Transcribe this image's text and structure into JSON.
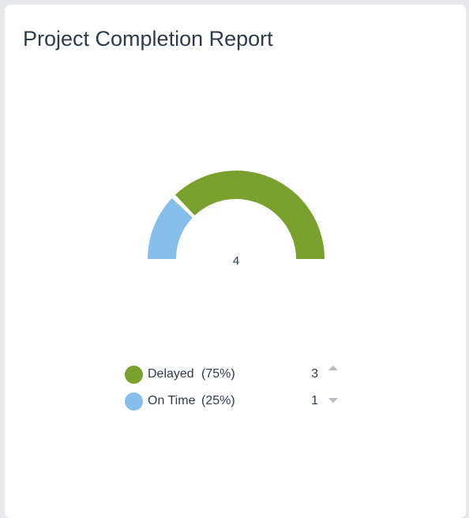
{
  "card": {
    "title": "Project Completion Report"
  },
  "chart_data": {
    "type": "pie",
    "subtype": "semi-donut gauge",
    "title": "Project Completion Report",
    "total": 4,
    "series": [
      {
        "name": "Delayed",
        "value": 3,
        "percent": "(75%)",
        "color": "#7aa02d",
        "trend": "up"
      },
      {
        "name": "On Time",
        "value": 1,
        "percent": "(25%)",
        "color": "#86bfea",
        "trend": "down"
      }
    ],
    "legend_position": "bottom"
  },
  "legend": [
    {
      "label": "Delayed",
      "percent": "(75%)",
      "value": "3",
      "trend_icon": "caret-up-icon"
    },
    {
      "label": "On Time",
      "percent": "(25%)",
      "value": "1",
      "trend_icon": "caret-down-icon"
    }
  ],
  "colors": {
    "delayed": "#7aa02d",
    "on_time": "#86bfea",
    "background": "#e6e8eb",
    "card": "#ffffff",
    "text": "#2f3b4b"
  }
}
